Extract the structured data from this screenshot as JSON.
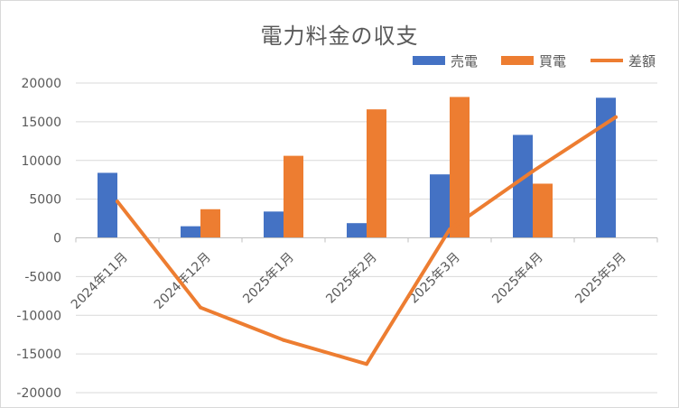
{
  "chart_data": {
    "type": "bar",
    "title": "電力料金の収支",
    "categories": [
      "2024年11月",
      "2024年12月",
      "2025年1月",
      "2025年2月",
      "2025年3月",
      "2025年4月",
      "2025年5月"
    ],
    "series": [
      {
        "name": "売電",
        "kind": "bar",
        "color": "#4472c4",
        "values": [
          8400,
          1500,
          3400,
          1900,
          8200,
          13300,
          18100
        ]
      },
      {
        "name": "買電",
        "kind": "bar",
        "color": "#ed7d31",
        "values": [
          null,
          3700,
          10600,
          16600,
          18200,
          7000,
          null
        ]
      },
      {
        "name": "差額",
        "kind": "line",
        "color": "#ed7d31",
        "values": [
          4700,
          -9000,
          -13200,
          -16300,
          1100,
          8600,
          15600
        ]
      }
    ],
    "ylim": [
      -20000,
      20000
    ],
    "yticks": [
      -20000,
      -15000,
      -10000,
      -5000,
      0,
      5000,
      10000,
      15000,
      20000
    ],
    "grid": true,
    "legend_position": "top-right"
  }
}
